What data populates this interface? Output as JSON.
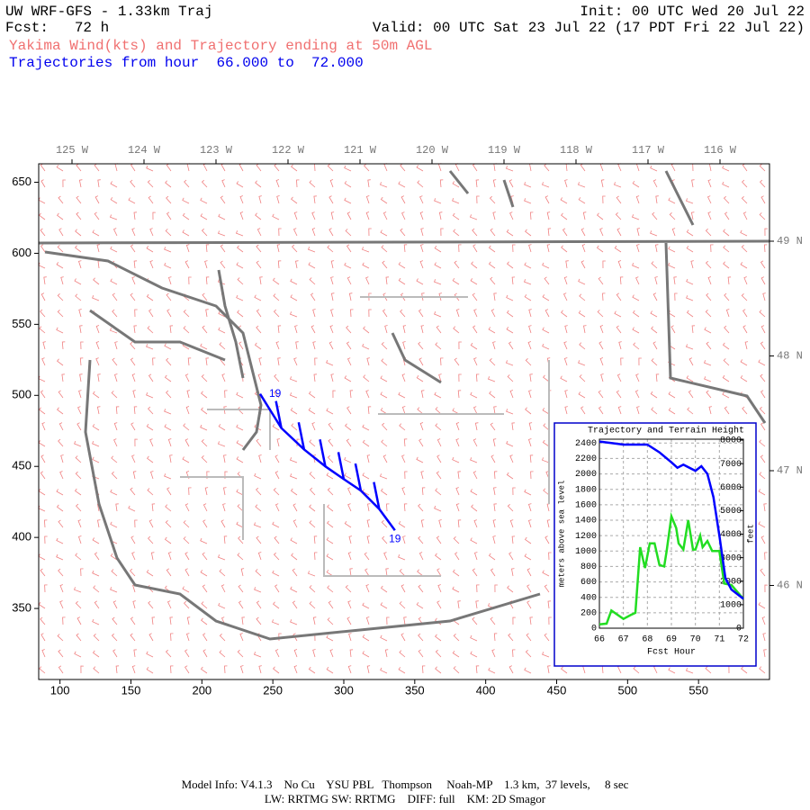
{
  "header": {
    "title": "UW WRF-GFS - 1.33km Traj",
    "init": "Init: 00 UTC Wed 20 Jul 22",
    "fcst": "Fcst:   72 h",
    "valid": "Valid: 00 UTC Sat 23 Jul 22 (17 PDT Fri 22 Jul 22)",
    "subtitle": "Yakima Wind(kts) and Trajectory ending at 50m AGL",
    "trajectories": "Trajectories from hour  66.000 to  72.000"
  },
  "map": {
    "xlim": [
      85,
      600
    ],
    "ylim": [
      300,
      663
    ],
    "xticks": [
      100,
      150,
      200,
      250,
      300,
      350,
      400,
      450,
      500,
      550
    ],
    "yticks": [
      350,
      400,
      450,
      500,
      550,
      600,
      650
    ],
    "lon_labels": [
      "125 W",
      "124 W",
      "123 W",
      "122 W",
      "121 W",
      "120 W",
      "119 W",
      "118 W",
      "117 W",
      "116 W"
    ],
    "lat_labels": [
      "49 N",
      "48 N",
      "47 N",
      "46 N"
    ],
    "trajectory": {
      "color": "#0000ff",
      "x": [
        241,
        256,
        272,
        287,
        300,
        312,
        325,
        336
      ],
      "y": [
        501,
        477,
        462,
        450,
        441,
        433,
        420,
        405
      ],
      "start_label": "19",
      "end_label": "19"
    }
  },
  "chart_data": {
    "type": "line",
    "title": "Trajectory and Terrain Height",
    "ylabel": "meters above sea level",
    "y2label": "feet",
    "xlabel": "Fcst Hour",
    "xlim": [
      66,
      72
    ],
    "xticks": [
      66,
      67,
      68,
      69,
      70,
      71,
      72
    ],
    "ylim": [
      0,
      2450
    ],
    "yticks": [
      0,
      200,
      400,
      600,
      800,
      1000,
      1200,
      1400,
      1600,
      1800,
      2000,
      2200,
      2400
    ],
    "y2lim": [
      0,
      8040
    ],
    "y2ticks": [
      0,
      1000,
      2000,
      3000,
      4000,
      5000,
      6000,
      7000,
      8000
    ],
    "grid": true,
    "series": [
      {
        "color": "#0000ff",
        "x": [
          66,
          66.5,
          67,
          67.5,
          68,
          68.5,
          69,
          69.25,
          69.5,
          70,
          70.25,
          70.5,
          70.75,
          71,
          71.25,
          71.5,
          72
        ],
        "values": [
          2420,
          2400,
          2380,
          2380,
          2380,
          2280,
          2150,
          2080,
          2120,
          2040,
          2100,
          2000,
          1700,
          1200,
          650,
          500,
          380
        ]
      },
      {
        "color": "#22dd22",
        "x": [
          66,
          66.3,
          66.5,
          67,
          67.3,
          67.5,
          67.7,
          67.9,
          68.1,
          68.3,
          68.5,
          68.7,
          68.8,
          69,
          69.2,
          69.3,
          69.5,
          69.7,
          69.9,
          70,
          70.2,
          70.3,
          70.5,
          70.7,
          71,
          71.2,
          71.5,
          72
        ],
        "values": [
          50,
          60,
          230,
          120,
          170,
          200,
          1050,
          780,
          1100,
          1100,
          820,
          800,
          1000,
          1450,
          1300,
          1100,
          1020,
          1400,
          1020,
          1020,
          1200,
          1050,
          1130,
          1000,
          1000,
          580,
          560,
          380
        ]
      }
    ]
  },
  "footer": {
    "line1": "Model Info: V4.1.3    No Cu    YSU PBL   Thompson     Noah-MP    1.3 km,  37 levels,     8 sec",
    "line2": "LW: RRTMG SW: RRTMG    DIFF: full    KM: 2D Smagor"
  }
}
